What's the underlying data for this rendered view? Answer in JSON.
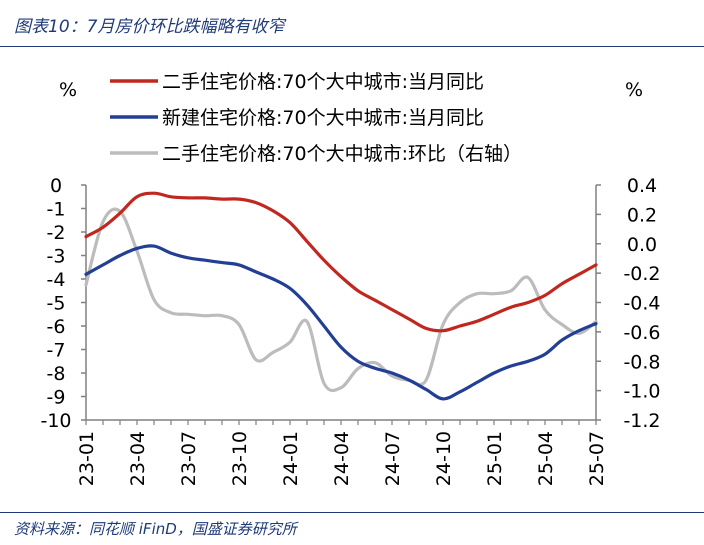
{
  "title": "图表10：7月房价环比跌幅略有收窄",
  "source": "资料来源：同花顺 iFinD，国盛证券研究所",
  "chart_data": {
    "type": "line",
    "left_unit": "%",
    "right_unit": "%",
    "left_axis": {
      "min": -10,
      "max": 0,
      "ticks": [
        "0",
        "-1",
        "-2",
        "-3",
        "-4",
        "-5",
        "-6",
        "-7",
        "-8",
        "-9",
        "-10"
      ]
    },
    "right_axis": {
      "min": -1.2,
      "max": 0.4,
      "ticks": [
        "0.4",
        "0.2",
        "0.0",
        "-0.2",
        "-0.4",
        "-0.6",
        "-0.8",
        "-1.0",
        "-1.2"
      ]
    },
    "x_tick_labels": [
      "23-01",
      "23-04",
      "23-07",
      "23-10",
      "24-01",
      "24-04",
      "24-07",
      "24-10",
      "25-01",
      "25-04",
      "25-07"
    ],
    "x": [
      "23-01",
      "23-02",
      "23-03",
      "23-04",
      "23-05",
      "23-06",
      "23-07",
      "23-08",
      "23-09",
      "23-10",
      "23-11",
      "23-12",
      "24-01",
      "24-02",
      "24-03",
      "24-04",
      "24-05",
      "24-06",
      "24-07",
      "24-08",
      "24-09",
      "24-10",
      "24-11",
      "24-12",
      "25-01",
      "25-02",
      "25-03",
      "25-04",
      "25-05",
      "25-06",
      "25-07"
    ],
    "series": [
      {
        "name": "二手住宅价格:70个大中城市:当月同比",
        "color": "#c0281f",
        "axis": "left",
        "values": [
          -2.2,
          -1.8,
          -1.2,
          -0.5,
          -0.35,
          -0.5,
          -0.55,
          -0.55,
          -0.6,
          -0.6,
          -0.75,
          -1.1,
          -1.6,
          -2.4,
          -3.2,
          -3.9,
          -4.5,
          -4.9,
          -5.3,
          -5.7,
          -6.1,
          -6.2,
          -6.0,
          -5.8,
          -5.5,
          -5.2,
          -5.0,
          -4.7,
          -4.2,
          -3.8,
          -3.4
        ]
      },
      {
        "name": "新建住宅价格:70个大中城市:当月同比",
        "color": "#223f95",
        "axis": "left",
        "values": [
          -3.8,
          -3.4,
          -3.0,
          -2.7,
          -2.6,
          -2.9,
          -3.1,
          -3.2,
          -3.3,
          -3.4,
          -3.7,
          -4.0,
          -4.4,
          -5.1,
          -6.0,
          -6.9,
          -7.5,
          -7.8,
          -8.0,
          -8.3,
          -8.7,
          -9.1,
          -8.8,
          -8.4,
          -8.0,
          -7.7,
          -7.5,
          -7.2,
          -6.6,
          -6.2,
          -5.9
        ]
      },
      {
        "name": "二手住宅价格:70个大中城市:环比（右轴）",
        "color": "#bcbcbc",
        "axis": "right",
        "values": [
          -0.28,
          0.15,
          0.22,
          -0.05,
          -0.38,
          -0.47,
          -0.48,
          -0.49,
          -0.49,
          -0.55,
          -0.79,
          -0.74,
          -0.67,
          -0.53,
          -0.95,
          -0.98,
          -0.85,
          -0.81,
          -0.9,
          -0.93,
          -0.93,
          -0.55,
          -0.4,
          -0.34,
          -0.34,
          -0.32,
          -0.23,
          -0.45,
          -0.55,
          -0.61,
          -0.53
        ]
      }
    ],
    "legend_position": "top-center",
    "grid": false
  }
}
